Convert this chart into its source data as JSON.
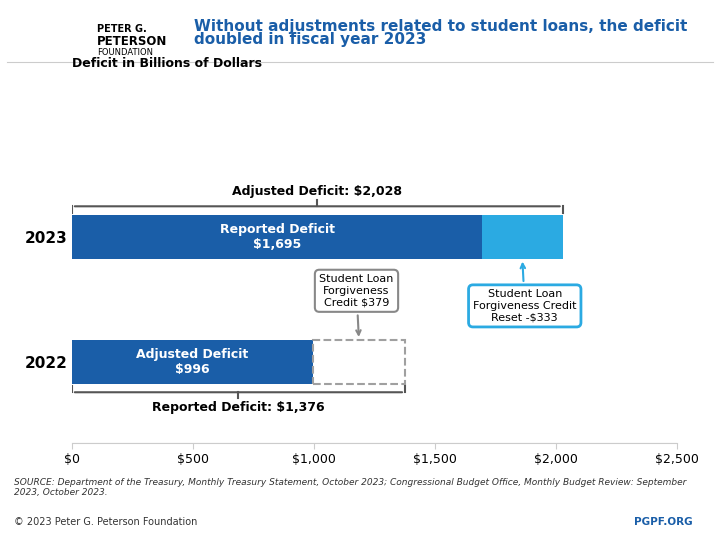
{
  "title_line1": "Without adjustments related to student loans, the deficit",
  "title_line2": "doubled in fiscal year 2023",
  "ylabel_chart": "Deficit in Billions of Dollars",
  "title_color": "#1a5ea8",
  "background_color": "#ffffff",
  "bar_2023_reported": 1695,
  "bar_2023_credit_reset": 333,
  "bar_2023_total": 2028,
  "bar_2022_adjusted": 996,
  "bar_2022_reported": 1376,
  "bar_2022_sl_credit": 379,
  "x_max": 2500,
  "x_ticks": [
    0,
    500,
    1000,
    1500,
    2000,
    2500
  ],
  "x_tick_labels": [
    "$0",
    "$500",
    "$1,000",
    "$1,500",
    "$2,000",
    "$2,500"
  ],
  "dark_blue": "#1a5ea8",
  "light_blue": "#2baae2",
  "gray_dashed_color": "#a0a0a0",
  "bracket_color": "#555555",
  "annotation_box_gray_edge": "#888888",
  "annotation_box_blue_edge": "#2baae2",
  "source_text": "SOURCE: Department of the Treasury, Monthly Treasury Statement, October 2023; Congressional Budget Office, Monthly Budget Review: September\n2023, October 2023.",
  "copyright_text": "© 2023 Peter G. Peterson Foundation",
  "pgpf_text": "PGPF.ORG",
  "pgpf_color": "#1a5ea8"
}
